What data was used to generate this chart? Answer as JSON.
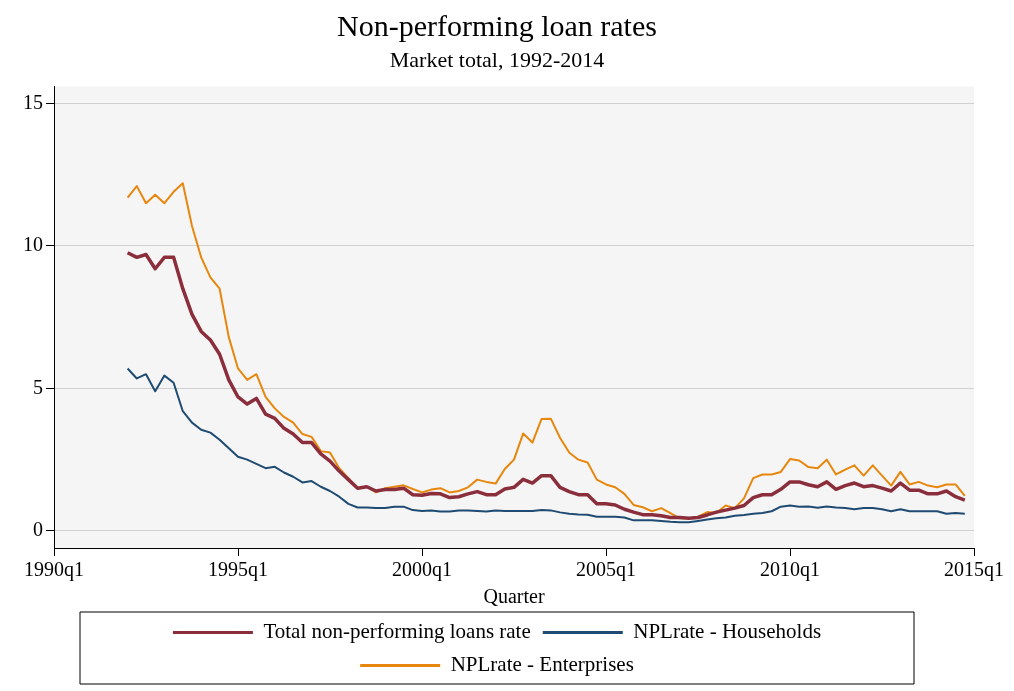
{
  "chart_data": {
    "type": "line",
    "title": "Non-performing loan rates",
    "subtitle": "Market total, 1992-2014",
    "xlabel": "Quarter",
    "categories": [
      "1990q1",
      null,
      null,
      null,
      null,
      null,
      null,
      null,
      null,
      null,
      null,
      null,
      null,
      null,
      null,
      null,
      null,
      null,
      null,
      null,
      "1995q1",
      null,
      null,
      null,
      null,
      null,
      null,
      null,
      null,
      null,
      null,
      null,
      null,
      null,
      null,
      null,
      null,
      null,
      null,
      null,
      "2000q1",
      null,
      null,
      null,
      null,
      null,
      null,
      null,
      null,
      null,
      null,
      null,
      null,
      null,
      null,
      null,
      null,
      null,
      null,
      null,
      "2005q1",
      null,
      null,
      null,
      null,
      null,
      null,
      null,
      null,
      null,
      null,
      null,
      null,
      null,
      null,
      null,
      null,
      null,
      null,
      null,
      "2010q1",
      null,
      null,
      null,
      null,
      null,
      null,
      null,
      null,
      null,
      null,
      null,
      null,
      null,
      null,
      null,
      null,
      null,
      null,
      null,
      "2015q1"
    ],
    "series": [
      {
        "name": "Total non-performing loans rate",
        "color": "#8b2e3c",
        "values": [
          null,
          null,
          null,
          null,
          null,
          null,
          null,
          null,
          9.76,
          9.6,
          9.7,
          9.2,
          9.6,
          9.6,
          8.5,
          7.6,
          7.0,
          6.7,
          6.2,
          5.3,
          4.7,
          4.45,
          4.65,
          4.1,
          3.95,
          3.6,
          3.4,
          3.1,
          3.1,
          2.7,
          2.45,
          2.1,
          1.8,
          1.5,
          1.55,
          1.4,
          1.45,
          1.45,
          1.5,
          1.27,
          1.25,
          1.31,
          1.3,
          1.17,
          1.2,
          1.3,
          1.38,
          1.27,
          1.27,
          1.47,
          1.53,
          1.81,
          1.68,
          1.94,
          1.94,
          1.53,
          1.38,
          1.27,
          1.27,
          0.95,
          0.95,
          0.91,
          0.76,
          0.66,
          0.57,
          0.57,
          0.53,
          0.47,
          0.47,
          0.44,
          0.47,
          0.56,
          0.66,
          0.73,
          0.8,
          0.89,
          1.17,
          1.27,
          1.27,
          1.46,
          1.72,
          1.72,
          1.62,
          1.55,
          1.72,
          1.46,
          1.59,
          1.68,
          1.55,
          1.59,
          1.5,
          1.4,
          1.68,
          1.43,
          1.43,
          1.3,
          1.3,
          1.4,
          1.2,
          1.08,
          null
        ]
      },
      {
        "name": "NPLrate - Households",
        "color": "#1f4b73",
        "values": [
          null,
          null,
          null,
          null,
          null,
          null,
          null,
          null,
          5.7,
          5.35,
          5.5,
          4.9,
          5.45,
          5.2,
          4.2,
          3.8,
          3.55,
          3.45,
          3.2,
          2.9,
          2.6,
          2.5,
          2.35,
          2.2,
          2.25,
          2.05,
          1.9,
          1.7,
          1.75,
          1.55,
          1.4,
          1.2,
          0.95,
          0.82,
          0.82,
          0.8,
          0.8,
          0.85,
          0.85,
          0.73,
          0.7,
          0.72,
          0.68,
          0.68,
          0.72,
          0.72,
          0.7,
          0.68,
          0.72,
          0.7,
          0.7,
          0.7,
          0.7,
          0.73,
          0.72,
          0.65,
          0.6,
          0.58,
          0.57,
          0.5,
          0.5,
          0.5,
          0.47,
          0.37,
          0.37,
          0.37,
          0.35,
          0.32,
          0.3,
          0.3,
          0.35,
          0.4,
          0.44,
          0.47,
          0.53,
          0.56,
          0.6,
          0.63,
          0.69,
          0.85,
          0.89,
          0.85,
          0.86,
          0.81,
          0.86,
          0.82,
          0.8,
          0.76,
          0.8,
          0.8,
          0.76,
          0.69,
          0.76,
          0.69,
          0.69,
          0.69,
          0.69,
          0.6,
          0.63,
          0.6,
          null
        ]
      },
      {
        "name": "NPLrate - Enterprises",
        "color": "#e8870e",
        "values": [
          null,
          null,
          null,
          null,
          null,
          null,
          null,
          null,
          11.7,
          12.1,
          11.5,
          11.8,
          11.5,
          11.9,
          12.2,
          10.7,
          9.6,
          8.9,
          8.5,
          6.8,
          5.7,
          5.3,
          5.5,
          4.7,
          4.3,
          4.0,
          3.8,
          3.4,
          3.3,
          2.8,
          2.75,
          2.2,
          1.85,
          1.5,
          1.55,
          1.35,
          1.5,
          1.55,
          1.6,
          1.47,
          1.35,
          1.45,
          1.5,
          1.35,
          1.4,
          1.53,
          1.8,
          1.72,
          1.66,
          2.17,
          2.5,
          3.42,
          3.1,
          3.93,
          3.94,
          3.27,
          2.75,
          2.5,
          2.4,
          1.8,
          1.63,
          1.53,
          1.3,
          0.91,
          0.83,
          0.69,
          0.8,
          0.62,
          0.44,
          0.44,
          0.5,
          0.66,
          0.63,
          0.89,
          0.8,
          1.14,
          1.85,
          1.98,
          1.98,
          2.07,
          2.52,
          2.47,
          2.24,
          2.2,
          2.5,
          1.98,
          2.15,
          2.3,
          1.94,
          2.3,
          1.94,
          1.59,
          2.07,
          1.63,
          1.72,
          1.59,
          1.53,
          1.63,
          1.63,
          1.23,
          null
        ]
      }
    ],
    "ylim": [
      -0.6,
      15.6
    ],
    "yticks": [
      0,
      5,
      10,
      15
    ],
    "grid": "y",
    "legend": "bottom",
    "marker": "none",
    "line_style": "solid"
  }
}
